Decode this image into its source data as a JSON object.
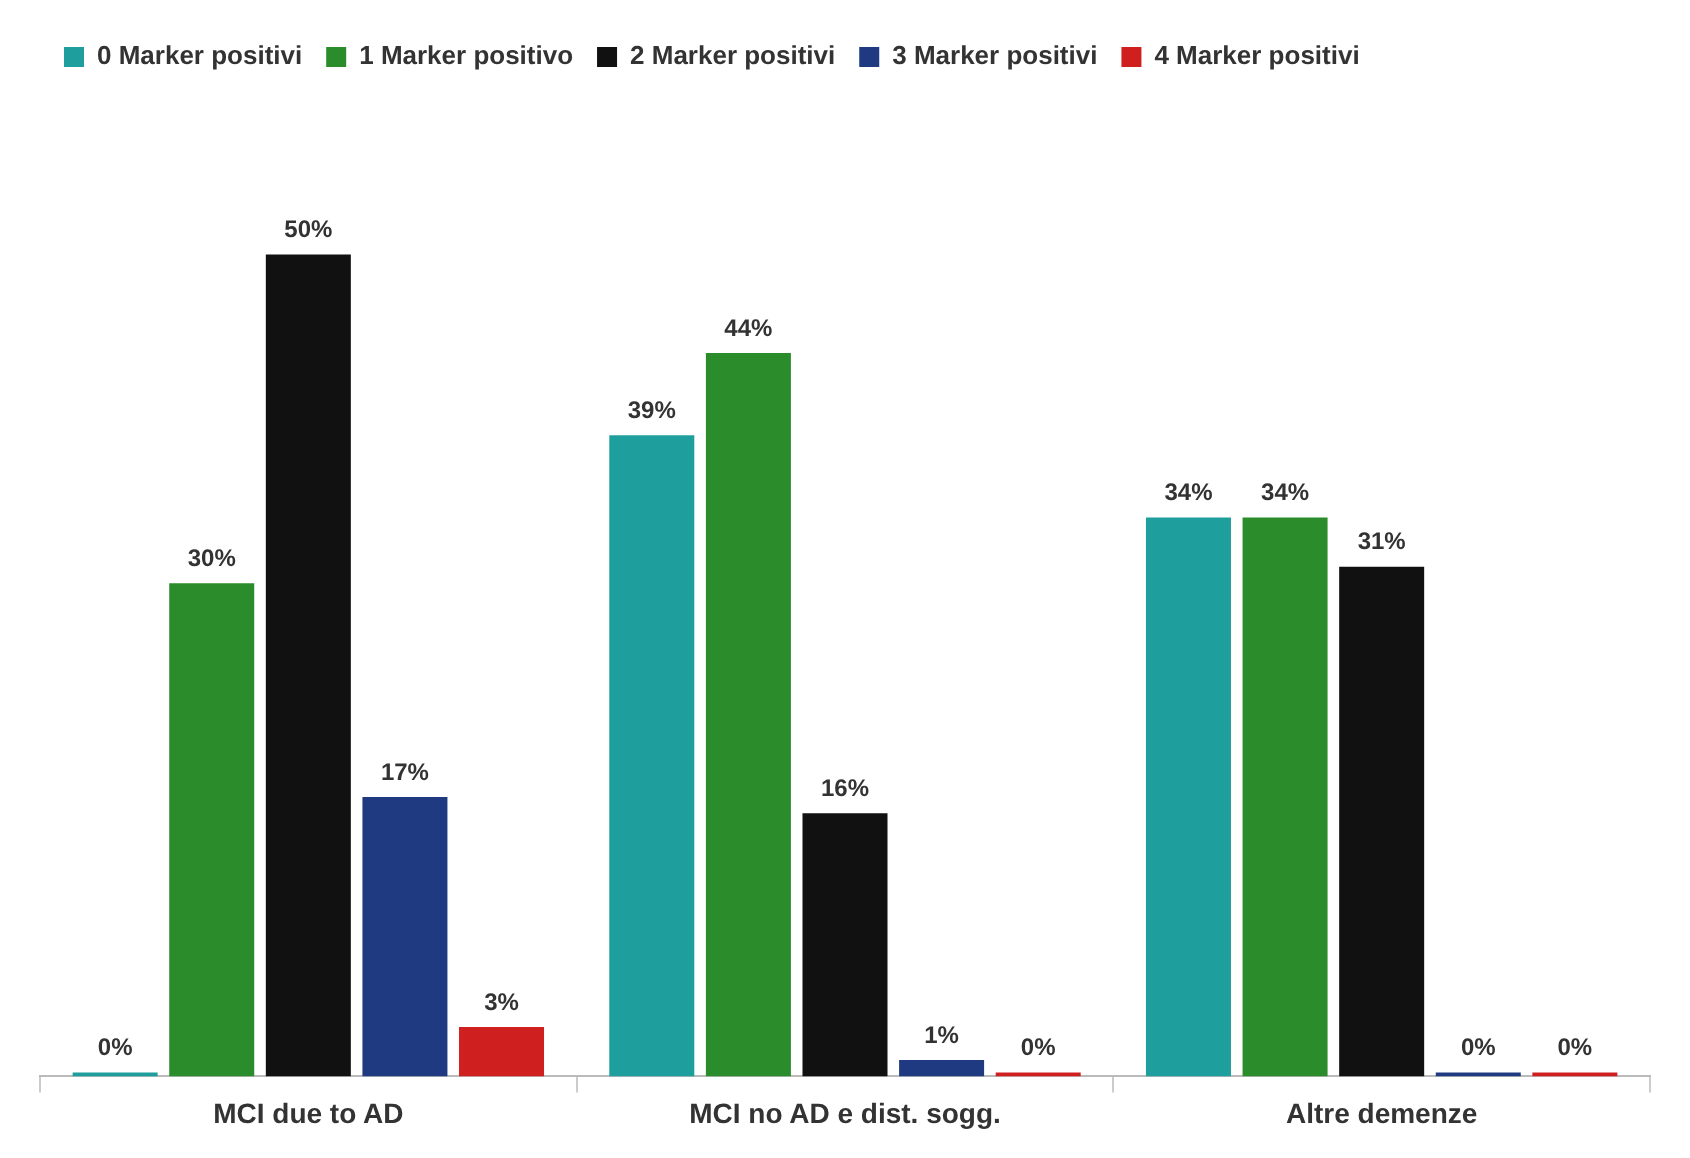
{
  "chart_data": {
    "type": "bar",
    "categories": [
      "MCI due to AD",
      "MCI no AD e dist. sogg.",
      "Altre demenze"
    ],
    "series": [
      {
        "name": "0 Marker positivi",
        "color": "#1f9e9e",
        "values": [
          0,
          39,
          34
        ],
        "value_labels": [
          "0%",
          "39%",
          "34%"
        ]
      },
      {
        "name": "1 Marker positivo",
        "color": "#2a8c2a",
        "values": [
          30,
          44,
          34
        ],
        "value_labels": [
          "30%",
          "44%",
          "34%"
        ]
      },
      {
        "name": "2 Marker positivi",
        "color": "#111111",
        "values": [
          50,
          16,
          31
        ],
        "value_labels": [
          "50%",
          "16%",
          "31%"
        ]
      },
      {
        "name": "3 Marker positivi",
        "color": "#1f3a80",
        "values": [
          17,
          1,
          0
        ],
        "value_labels": [
          "17%",
          "1%",
          "0%"
        ]
      },
      {
        "name": "4 Marker positivi",
        "color": "#d01f1f",
        "values": [
          3,
          0,
          0
        ],
        "value_labels": [
          "3%",
          "0%",
          "0%"
        ]
      }
    ],
    "grid": false,
    "legend": "top"
  }
}
